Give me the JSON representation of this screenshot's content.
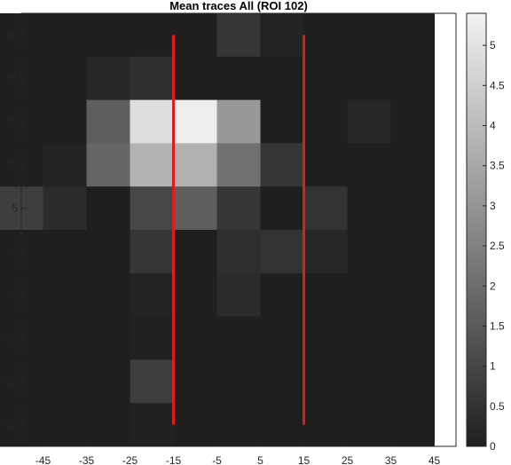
{
  "chart_data": {
    "type": "heatmap",
    "title": "Mean traces All (ROI 102)",
    "xlabel": "",
    "ylabel": "",
    "x_centers": [
      -50,
      -40,
      -30,
      -20,
      -10,
      0,
      10,
      20,
      30,
      40
    ],
    "y_centers": [
      45,
      35,
      25,
      15,
      5,
      -5,
      -15,
      -25,
      -35,
      -45
    ],
    "xlim": [
      -50,
      50
    ],
    "ylim": [
      -50,
      50
    ],
    "x_ticks": [
      -45,
      -35,
      -25,
      -15,
      -5,
      5,
      15,
      25,
      35,
      45
    ],
    "y_ticks": [
      45,
      35,
      25,
      15,
      5,
      -5,
      -15,
      -25,
      -35,
      -45
    ],
    "colorbar": {
      "min": 0,
      "max": 5.4,
      "ticks": [
        0,
        0.5,
        1,
        1.5,
        2,
        2.5,
        3,
        3.5,
        4,
        4.5,
        5
      ],
      "colormap": "gray"
    },
    "values": [
      [
        0,
        0,
        0,
        0,
        0,
        0.6,
        0.1,
        0,
        0,
        0
      ],
      [
        0,
        0,
        0.2,
        0.4,
        0,
        0,
        0,
        0,
        0,
        0
      ],
      [
        0,
        0,
        1.6,
        4.9,
        5.3,
        3.1,
        0,
        0,
        0.2,
        0
      ],
      [
        0,
        0.1,
        1.8,
        3.8,
        3.7,
        2.1,
        0.6,
        0,
        0,
        0
      ],
      [
        0.8,
        0.3,
        0,
        1.0,
        1.6,
        0.6,
        0,
        0.5,
        0,
        0
      ],
      [
        0,
        0,
        0,
        0.6,
        0,
        0.4,
        0.5,
        0.2,
        0,
        0
      ],
      [
        0,
        0,
        0,
        0.1,
        0,
        0.3,
        0,
        0,
        0,
        0
      ],
      [
        0,
        0,
        0,
        0.05,
        0,
        0,
        0,
        0,
        0,
        0
      ],
      [
        0,
        0,
        0,
        0.8,
        0,
        0,
        0,
        0,
        0,
        0
      ],
      [
        0,
        0,
        0,
        0.05,
        0,
        0,
        0,
        0,
        0,
        0
      ]
    ],
    "overlay_lines": [
      {
        "color": "#e01b1b",
        "x": -15,
        "y_range": [
          -45,
          45
        ]
      },
      {
        "color": "#e01b1b",
        "x": 15,
        "y_range": [
          -45,
          45
        ]
      }
    ]
  }
}
